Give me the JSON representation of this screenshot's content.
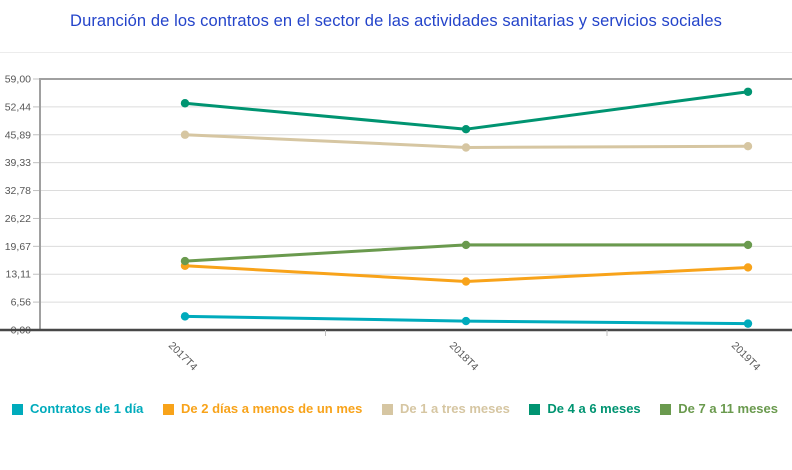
{
  "title": "Duranción de los contratos en el sector de las actividades sanitarias y servicios sociales",
  "colors": {
    "title": "#2444ca",
    "axis_text": "#575757",
    "gridline": "#dcdcdc",
    "plot_border": "#a0a0a0",
    "axis_line": "#474747",
    "tick_mark": "#bfbfbf",
    "background": "#ffffff"
  },
  "chart_data": {
    "type": "line",
    "title": "Duranción de los contratos en el sector de las actividades sanitarias y servicios sociales",
    "categories": [
      "2017T4",
      "2018T4",
      "2019T4"
    ],
    "series": [
      {
        "name": "Contratos de 1 día",
        "color": "#00abbc",
        "values": [
          3.2,
          2.1,
          1.5
        ]
      },
      {
        "name": "De 2 días a menos de un mes",
        "color": "#f8a31a",
        "values": [
          15.1,
          11.4,
          14.7
        ]
      },
      {
        "name": "De 1 a tres meses",
        "color": "#d6c6a2",
        "values": [
          45.9,
          42.9,
          43.2
        ]
      },
      {
        "name": "De 4 a 6 meses",
        "color": "#009471",
        "values": [
          53.3,
          47.2,
          56.0
        ]
      },
      {
        "name": "De 7 a 11 meses",
        "color": "#6a9a4e",
        "values": [
          16.2,
          20.0,
          20.0
        ]
      }
    ],
    "xlabel": "",
    "ylabel": "",
    "ylim": [
      0,
      59
    ],
    "y_ticks": [
      0,
      6.56,
      13.11,
      19.67,
      26.22,
      32.78,
      39.33,
      45.89,
      52.44,
      59
    ],
    "y_tick_labels": [
      "0,00",
      "6,56",
      "13,11",
      "19,67",
      "26,22",
      "32,78",
      "39,33",
      "45,89",
      "52,44",
      "59,00"
    ],
    "grid": true,
    "legend_position": "bottom",
    "x_label_rotation_deg": 45
  }
}
